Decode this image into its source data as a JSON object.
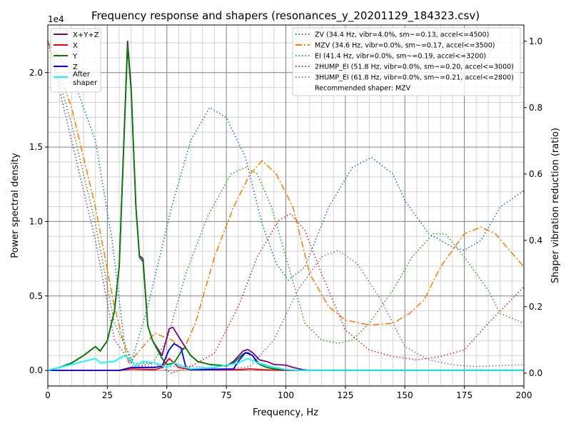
{
  "chart_data": {
    "type": "line",
    "title": "Frequency response and shapers (resonances_y_20201129_184323.csv)",
    "xlabel": "Frequency, Hz",
    "ylabel": "Power spectral density",
    "ylabel_right": "Shaper vibration reduction (ratio)",
    "y_offset_label": "1e4",
    "xlim": [
      0,
      200
    ],
    "ylim": [
      -0.105,
      2.32
    ],
    "ylim_right": [
      -0.039,
      1.049
    ],
    "x_ticks": [
      "0",
      "25",
      "50",
      "75",
      "100",
      "125",
      "150",
      "175",
      "200"
    ],
    "y_ticks": [
      "0.0",
      "0.5",
      "1.0",
      "1.5",
      "2.0"
    ],
    "y_ticks_right": [
      "0.0",
      "0.2",
      "0.4",
      "0.6",
      "0.8",
      "1.0"
    ],
    "grid": true,
    "legend_left": "top-left",
    "legend_right": "top-right",
    "psd_series": [
      {
        "name": "X+Y+Z",
        "color": "#800080",
        "points": [
          [
            0,
            0
          ],
          [
            5,
            0.02
          ],
          [
            10,
            0.05
          ],
          [
            15,
            0.1
          ],
          [
            20,
            0.16
          ],
          [
            22,
            0.13
          ],
          [
            25,
            0.2
          ],
          [
            28,
            0.4
          ],
          [
            30,
            0.7
          ],
          [
            33.5,
            2.21
          ],
          [
            35,
            1.9
          ],
          [
            37,
            1.1
          ],
          [
            38.5,
            0.77
          ],
          [
            40,
            0.75
          ],
          [
            42,
            0.3
          ],
          [
            44,
            0.2
          ],
          [
            48,
            0.1
          ],
          [
            51,
            0.28
          ],
          [
            52.5,
            0.29
          ],
          [
            56,
            0.2
          ],
          [
            58,
            0.15
          ],
          [
            60,
            0.1
          ],
          [
            63,
            0.06
          ],
          [
            68,
            0.04
          ],
          [
            75,
            0.03
          ],
          [
            78,
            0.06
          ],
          [
            82,
            0.13
          ],
          [
            84,
            0.14
          ],
          [
            86,
            0.12
          ],
          [
            89,
            0.07
          ],
          [
            92,
            0.06
          ],
          [
            95,
            0.04
          ],
          [
            100,
            0.035
          ],
          [
            103,
            0.02
          ],
          [
            107,
            0.005
          ],
          [
            110,
            0
          ],
          [
            200,
            0
          ]
        ]
      },
      {
        "name": "X",
        "color": "#ff0000",
        "points": [
          [
            0,
            0
          ],
          [
            30,
            0
          ],
          [
            35,
            0.01
          ],
          [
            45,
            0.005
          ],
          [
            48,
            0.02
          ],
          [
            51,
            0.08
          ],
          [
            53,
            0.05
          ],
          [
            55,
            0.02
          ],
          [
            60,
            0.005
          ],
          [
            80,
            0.005
          ],
          [
            85,
            0.01
          ],
          [
            90,
            0.005
          ],
          [
            100,
            0
          ],
          [
            200,
            0
          ]
        ]
      },
      {
        "name": "Y",
        "color": "#008000",
        "points": [
          [
            0,
            0
          ],
          [
            5,
            0.02
          ],
          [
            10,
            0.05
          ],
          [
            15,
            0.1
          ],
          [
            20,
            0.16
          ],
          [
            22,
            0.13
          ],
          [
            25,
            0.2
          ],
          [
            28,
            0.4
          ],
          [
            30,
            0.7
          ],
          [
            33.5,
            2.18
          ],
          [
            35,
            1.88
          ],
          [
            37,
            1.1
          ],
          [
            38.5,
            0.76
          ],
          [
            40,
            0.73
          ],
          [
            42,
            0.3
          ],
          [
            44,
            0.2
          ],
          [
            48,
            0.08
          ],
          [
            50,
            0.04
          ],
          [
            53,
            0.05
          ],
          [
            55,
            0.1
          ],
          [
            57,
            0.15
          ],
          [
            58,
            0.15
          ],
          [
            60,
            0.1
          ],
          [
            63,
            0.06
          ],
          [
            68,
            0.04
          ],
          [
            75,
            0.03
          ],
          [
            78,
            0.05
          ],
          [
            82,
            0.11
          ],
          [
            84,
            0.12
          ],
          [
            86,
            0.1
          ],
          [
            89,
            0.04
          ],
          [
            92,
            0.02
          ],
          [
            95,
            0.01
          ],
          [
            100,
            0.005
          ],
          [
            105,
            0
          ],
          [
            200,
            0
          ]
        ]
      },
      {
        "name": "Z",
        "color": "#0000ff",
        "points": [
          [
            0,
            0
          ],
          [
            30,
            0
          ],
          [
            35,
            0.02
          ],
          [
            45,
            0.02
          ],
          [
            48,
            0.03
          ],
          [
            51,
            0.14
          ],
          [
            53,
            0.18
          ],
          [
            56,
            0.15
          ],
          [
            58,
            0.02
          ],
          [
            60,
            0.005
          ],
          [
            78,
            0.01
          ],
          [
            80,
            0.06
          ],
          [
            83,
            0.12
          ],
          [
            86,
            0.1
          ],
          [
            88,
            0.05
          ],
          [
            95,
            0.02
          ],
          [
            100,
            0.005
          ],
          [
            105,
            0
          ],
          [
            200,
            0
          ]
        ]
      },
      {
        "name": "After\nshaper",
        "color": "#00ffff",
        "points": [
          [
            0,
            0
          ],
          [
            5,
            0.02
          ],
          [
            10,
            0.04
          ],
          [
            15,
            0.06
          ],
          [
            20,
            0.08
          ],
          [
            22,
            0.05
          ],
          [
            28,
            0.06
          ],
          [
            32,
            0.1
          ],
          [
            35,
            0.07
          ],
          [
            37,
            0.03
          ],
          [
            40,
            0.06
          ],
          [
            45,
            0.05
          ],
          [
            50,
            0.02
          ],
          [
            53,
            0.05
          ],
          [
            58,
            0.02
          ],
          [
            60,
            0.01
          ],
          [
            70,
            0.02
          ],
          [
            80,
            0.05
          ],
          [
            84,
            0.08
          ],
          [
            90,
            0.04
          ],
          [
            95,
            0.02
          ],
          [
            100,
            0.005
          ],
          [
            105,
            0
          ],
          [
            200,
            0
          ]
        ]
      }
    ],
    "shaper_series": [
      {
        "name": "ZV (34.4 Hz, vibr=4.0%, sm~=0.13, accel<=4500)",
        "color": "#1f77b4",
        "dash": "dotted",
        "points": [
          [
            0,
            1.0
          ],
          [
            10,
            0.9
          ],
          [
            20,
            0.7
          ],
          [
            27,
            0.4
          ],
          [
            32,
            0.1
          ],
          [
            35,
            0.03
          ],
          [
            42,
            0.2
          ],
          [
            52,
            0.5
          ],
          [
            60,
            0.7
          ],
          [
            68,
            0.8
          ],
          [
            75,
            0.77
          ],
          [
            83,
            0.65
          ],
          [
            90,
            0.45
          ],
          [
            96,
            0.33
          ],
          [
            101,
            0.28
          ],
          [
            108,
            0.32
          ],
          [
            118,
            0.5
          ],
          [
            128,
            0.62
          ],
          [
            136,
            0.65
          ],
          [
            145,
            0.6
          ],
          [
            150,
            0.52
          ],
          [
            160,
            0.42
          ],
          [
            170,
            0.38
          ],
          [
            175,
            0.37
          ],
          [
            182,
            0.4
          ],
          [
            190,
            0.5
          ],
          [
            200,
            0.55
          ]
        ]
      },
      {
        "name": "MZV (34.6 Hz, vibr=0.0%, sm~=0.17, accel<=3500)",
        "color": "#ff7f0e",
        "dash": "dashdot",
        "points": [
          [
            0,
            1.0
          ],
          [
            10,
            0.8
          ],
          [
            20,
            0.5
          ],
          [
            28,
            0.2
          ],
          [
            34,
            0.03
          ],
          [
            40,
            0.08
          ],
          [
            45,
            0.12
          ],
          [
            52,
            0.1
          ],
          [
            57,
            0.07
          ],
          [
            62,
            0.15
          ],
          [
            70,
            0.35
          ],
          [
            78,
            0.5
          ],
          [
            85,
            0.6
          ],
          [
            90,
            0.64
          ],
          [
            96,
            0.6
          ],
          [
            103,
            0.5
          ],
          [
            110,
            0.3
          ],
          [
            118,
            0.2
          ],
          [
            125,
            0.16
          ],
          [
            135,
            0.145
          ],
          [
            145,
            0.15
          ],
          [
            152,
            0.18
          ],
          [
            158,
            0.22
          ],
          [
            165,
            0.32
          ],
          [
            175,
            0.42
          ],
          [
            182,
            0.44
          ],
          [
            188,
            0.42
          ],
          [
            200,
            0.32
          ]
        ]
      },
      {
        "name": "EI (41.4 Hz, vibr=0.0%, sm~=0.19, accel<=3200)",
        "color": "#2ca02c",
        "dash": "dotted",
        "points": [
          [
            0,
            1.0
          ],
          [
            10,
            0.75
          ],
          [
            20,
            0.45
          ],
          [
            28,
            0.15
          ],
          [
            36,
            0.03
          ],
          [
            44,
            0.03
          ],
          [
            50,
            0.1
          ],
          [
            58,
            0.3
          ],
          [
            67,
            0.47
          ],
          [
            77,
            0.6
          ],
          [
            83,
            0.62
          ],
          [
            88,
            0.6
          ],
          [
            94,
            0.5
          ],
          [
            100,
            0.35
          ],
          [
            108,
            0.15
          ],
          [
            115,
            0.1
          ],
          [
            122,
            0.09
          ],
          [
            128,
            0.1
          ],
          [
            135,
            0.15
          ],
          [
            145,
            0.25
          ],
          [
            153,
            0.35
          ],
          [
            162,
            0.42
          ],
          [
            167,
            0.42
          ],
          [
            175,
            0.35
          ],
          [
            185,
            0.25
          ],
          [
            190,
            0.18
          ],
          [
            200,
            0.15
          ]
        ]
      },
      {
        "name": "2HUMP_EI (51.8 Hz, vibr=0.0%, sm~=0.20, accel<=3000)",
        "color": "#d62728",
        "dash": "dotted",
        "points": [
          [
            0,
            1.0
          ],
          [
            10,
            0.7
          ],
          [
            20,
            0.4
          ],
          [
            28,
            0.1
          ],
          [
            36,
            0.02
          ],
          [
            45,
            0.03
          ],
          [
            52,
            0.0
          ],
          [
            60,
            0.02
          ],
          [
            70,
            0.06
          ],
          [
            80,
            0.2
          ],
          [
            88,
            0.35
          ],
          [
            97,
            0.46
          ],
          [
            102,
            0.48
          ],
          [
            108,
            0.43
          ],
          [
            115,
            0.3
          ],
          [
            125,
            0.13
          ],
          [
            135,
            0.07
          ],
          [
            145,
            0.05
          ],
          [
            155,
            0.04
          ],
          [
            165,
            0.05
          ],
          [
            175,
            0.07
          ],
          [
            185,
            0.15
          ],
          [
            200,
            0.26
          ]
        ]
      },
      {
        "name": "3HUMP_EI (61.8 Hz, vibr=0.0%, sm~=0.21, accel<=2800)",
        "color": "#9467bd",
        "dash": "dotted",
        "points": [
          [
            0,
            1.0
          ],
          [
            10,
            0.7
          ],
          [
            20,
            0.4
          ],
          [
            28,
            0.1
          ],
          [
            36,
            0.02
          ],
          [
            50,
            0.02
          ],
          [
            62,
            0.02
          ],
          [
            75,
            0.01
          ],
          [
            85,
            0.02
          ],
          [
            95,
            0.1
          ],
          [
            105,
            0.25
          ],
          [
            115,
            0.35
          ],
          [
            122,
            0.37
          ],
          [
            130,
            0.33
          ],
          [
            140,
            0.22
          ],
          [
            150,
            0.08
          ],
          [
            160,
            0.04
          ],
          [
            170,
            0.025
          ],
          [
            180,
            0.02
          ],
          [
            200,
            0.025
          ]
        ]
      }
    ],
    "legend_note": "Recommended shaper: MZV"
  }
}
